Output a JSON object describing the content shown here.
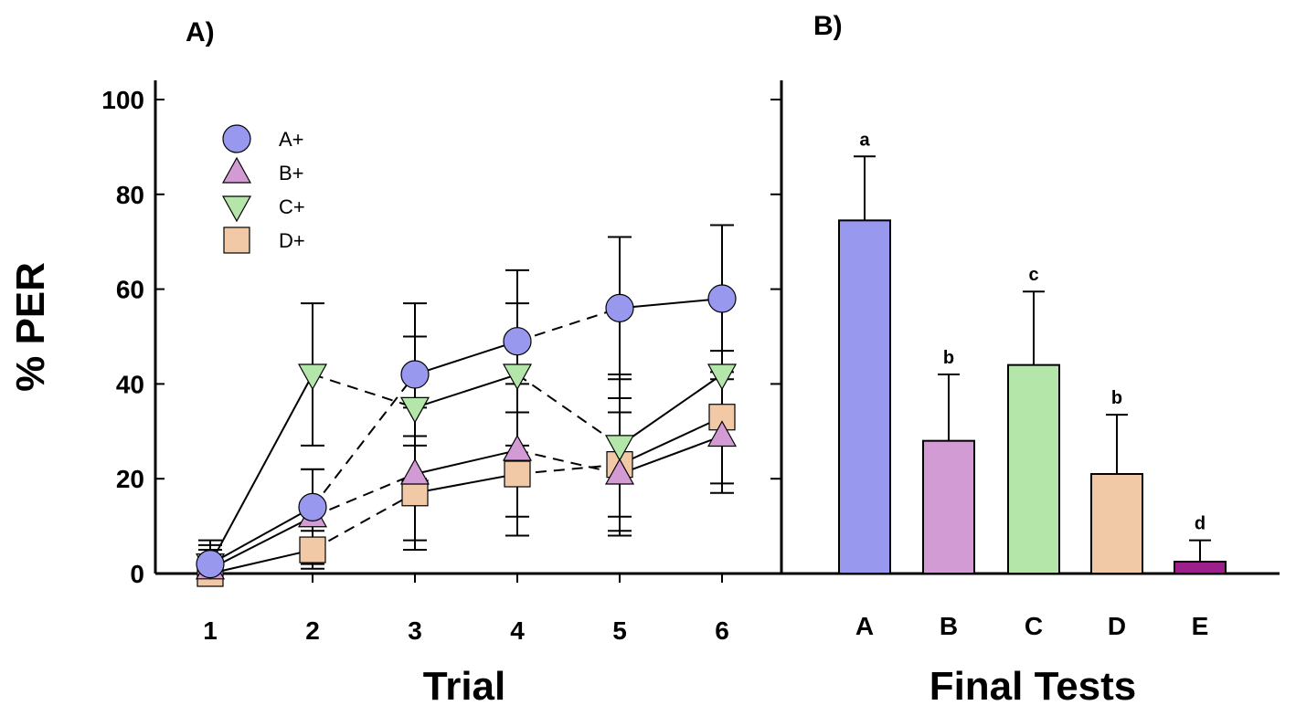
{
  "chart_data": [
    {
      "type": "line",
      "panel_label": "A)",
      "xlabel": "Trial",
      "ylabel": "% PER",
      "x": [
        1,
        2,
        3,
        4,
        5,
        6
      ],
      "x_tick_labels": [
        "1",
        "2",
        "3",
        "4",
        "5",
        "6"
      ],
      "ylim": [
        0,
        100
      ],
      "y_tick_labels": [
        "0",
        "20",
        "40",
        "60",
        "80",
        "100"
      ],
      "legend_position": "top-left",
      "series": [
        {
          "name": "A+",
          "marker": "circle",
          "line": "alternating",
          "color": "#9898ee",
          "values": [
            2,
            14,
            42,
            49,
            56,
            58
          ],
          "errors": [
            5,
            8,
            15,
            15,
            15,
            15.5
          ]
        },
        {
          "name": "B+",
          "marker": "triangle-up",
          "line": "alternating",
          "color": "#d39bd3",
          "values": [
            1,
            12,
            21,
            26,
            21,
            29
          ],
          "errors": [
            4,
            10,
            14,
            14,
            13,
            12
          ]
        },
        {
          "name": "C+",
          "marker": "triangle-down",
          "line": "alternating",
          "color": "#b3e6a8",
          "values": [
            2,
            42,
            35,
            42,
            27,
            42
          ],
          "errors": [
            4,
            15,
            15,
            15,
            15,
            15
          ]
        },
        {
          "name": "D+",
          "marker": "square",
          "line": "alternating",
          "color": "#f2c9a6",
          "values": [
            0,
            5,
            17,
            21,
            23,
            33
          ],
          "errors": [
            3,
            4,
            12,
            13,
            14,
            14
          ]
        }
      ]
    },
    {
      "type": "bar",
      "panel_label": "B)",
      "xlabel": "Final Tests",
      "ylabel": "% PER",
      "categories": [
        "A",
        "B",
        "C",
        "D",
        "E"
      ],
      "values": [
        74.5,
        28,
        44,
        21,
        2.5
      ],
      "errors": [
        13.5,
        14,
        15.5,
        12.5,
        4.5
      ],
      "significance_letters": [
        "a",
        "b",
        "c",
        "b",
        "d"
      ],
      "colors": [
        "#9898ee",
        "#d39bd3",
        "#b3e6a8",
        "#f2c9a6",
        "#9c1f8c"
      ],
      "ylim": [
        0,
        100
      ]
    }
  ]
}
